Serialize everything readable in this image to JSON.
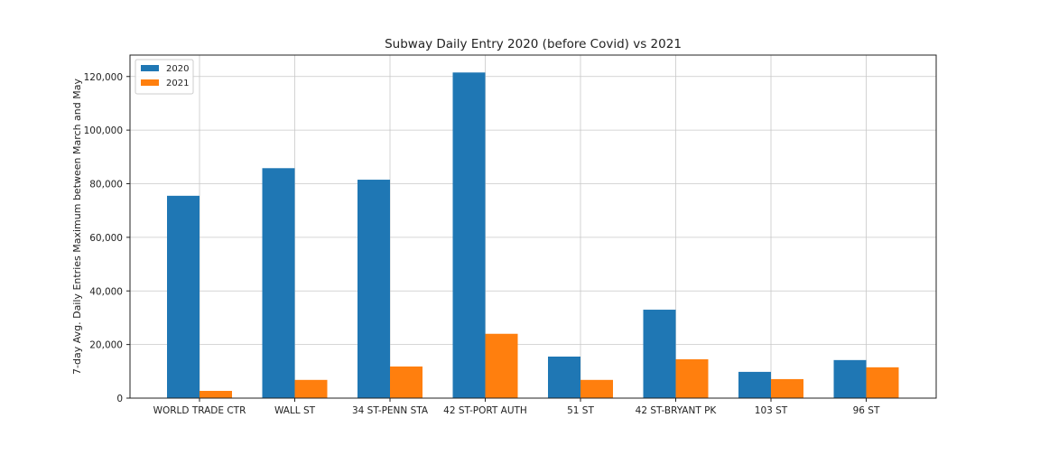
{
  "chart_data": {
    "type": "bar",
    "title": "Subway Daily Entry 2020 (before Covid) vs 2021",
    "xlabel": "",
    "ylabel": "7-day Avg. Daily Entries Maximum between March and May",
    "categories": [
      "WORLD TRADE CTR",
      "WALL ST",
      "34 ST-PENN STA",
      "42 ST-PORT AUTH",
      "51 ST",
      "42 ST-BRYANT PK",
      "103 ST",
      "96 ST"
    ],
    "series": [
      {
        "name": "2020",
        "color": "#1f77b4",
        "values": [
          75500,
          85800,
          81500,
          121500,
          15500,
          33000,
          9800,
          14200
        ]
      },
      {
        "name": "2021",
        "color": "#ff7f0e",
        "values": [
          2700,
          6800,
          11800,
          24000,
          6800,
          14500,
          7100,
          11500
        ]
      }
    ],
    "ylim": [
      0,
      128000
    ],
    "yticks": [
      0,
      20000,
      40000,
      60000,
      80000,
      100000,
      120000
    ],
    "ytick_labels": [
      "0",
      "20,000",
      "40,000",
      "60,000",
      "80,000",
      "100,000",
      "120,000"
    ],
    "grid": true,
    "legend_position": "top-left"
  }
}
